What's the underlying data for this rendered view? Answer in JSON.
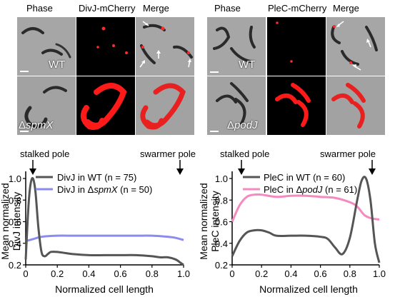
{
  "left_panel": {
    "headers": [
      "Phase",
      "DivJ-mCherry",
      "Merge"
    ],
    "row_labels": [
      "WT",
      "ΔspmX"
    ],
    "row_label_parts": [
      {
        "prefix": "",
        "italic": "WT"
      },
      {
        "prefix": "Δ",
        "italic": "spmX"
      }
    ]
  },
  "right_panel": {
    "headers": [
      "Phase",
      "PleC-mCherry",
      "Merge"
    ],
    "row_labels": [
      "WT",
      "ΔpodJ"
    ],
    "row_label_parts": [
      {
        "prefix": "",
        "italic": "WT"
      },
      {
        "prefix": "Δ",
        "italic": "podJ"
      }
    ]
  },
  "pole_labels": {
    "left_stalked": "stalked pole",
    "left_swarmer": "swarmer pole",
    "right_stalked": "stalked pole",
    "right_swarmer": "swarmer pole"
  },
  "colors": {
    "wt_line": "#555555",
    "mutant_left": "#8b8bf0",
    "mutant_right": "#f58ac0",
    "mcherry": "#ff1a1a",
    "arrow_white": "#ffffff"
  },
  "chart_data": [
    {
      "type": "line",
      "xlabel": "Normalized cell length",
      "ylabel": "Mean normalized DivJ intensity",
      "ylabel_lines": [
        "Mean normalized",
        "DivJ intensity"
      ],
      "xlim": [
        0,
        1
      ],
      "ylim": [
        0.2,
        1.0
      ],
      "xticks": [
        "0",
        "0.2",
        "0.4",
        "0.6",
        "0.8",
        "1.0"
      ],
      "yticks": [
        "0.2",
        "0.4",
        "0.6",
        "0.8",
        "1.0"
      ],
      "legend_loc": "top",
      "legend_labels": [
        {
          "prefix": "DivJ in WT (n = 75)",
          "italic": "",
          "suffix": ""
        },
        {
          "prefix": "DivJ in Δ",
          "italic": "spmX",
          "suffix": " (n = 50)"
        }
      ],
      "series": [
        {
          "name": "DivJ in WT (n = 75)",
          "x": [
            0.0,
            0.02,
            0.04,
            0.06,
            0.08,
            0.1,
            0.12,
            0.14,
            0.16,
            0.2,
            0.25,
            0.3,
            0.4,
            0.5,
            0.6,
            0.7,
            0.8,
            0.85,
            0.9,
            0.95,
            0.98,
            1.0
          ],
          "y": [
            0.25,
            0.8,
            1.0,
            0.9,
            0.55,
            0.32,
            0.28,
            0.3,
            0.32,
            0.32,
            0.31,
            0.3,
            0.29,
            0.29,
            0.29,
            0.29,
            0.28,
            0.27,
            0.27,
            0.25,
            0.22,
            0.2
          ]
        },
        {
          "name": "DivJ in ΔspmX (n = 50)",
          "x": [
            0.0,
            0.05,
            0.1,
            0.2,
            0.3,
            0.4,
            0.5,
            0.6,
            0.7,
            0.8,
            0.9,
            0.95,
            1.0
          ],
          "y": [
            0.42,
            0.44,
            0.46,
            0.47,
            0.47,
            0.47,
            0.47,
            0.47,
            0.47,
            0.47,
            0.46,
            0.45,
            0.43
          ]
        }
      ]
    },
    {
      "type": "line",
      "xlabel": "Normalized cell length",
      "ylabel": "Mean normalized PleC intensity",
      "ylabel_lines": [
        "Mean normalized",
        "PleC intensity"
      ],
      "xlim": [
        0,
        1
      ],
      "ylim": [
        0.2,
        1.0
      ],
      "xticks": [
        "0",
        "0.2",
        "0.4",
        "0.6",
        "0.8",
        "1.0"
      ],
      "yticks": [
        "0.2",
        "0.4",
        "0.6",
        "0.8",
        "1.0"
      ],
      "legend_loc": "top",
      "legend_labels": [
        {
          "prefix": "PleC in WT (n = 60)",
          "italic": "",
          "suffix": ""
        },
        {
          "prefix": "PleC in Δ",
          "italic": "podJ",
          "suffix": " (n = 61)"
        }
      ],
      "series": [
        {
          "name": "PleC in WT (n = 60)",
          "x": [
            0.0,
            0.05,
            0.1,
            0.15,
            0.2,
            0.25,
            0.3,
            0.4,
            0.5,
            0.6,
            0.65,
            0.7,
            0.75,
            0.8,
            0.85,
            0.88,
            0.91,
            0.94,
            0.97,
            1.0
          ],
          "y": [
            0.28,
            0.42,
            0.5,
            0.52,
            0.52,
            0.5,
            0.47,
            0.47,
            0.47,
            0.46,
            0.44,
            0.36,
            0.3,
            0.45,
            0.8,
            0.98,
            1.0,
            0.8,
            0.4,
            0.22
          ]
        },
        {
          "name": "PleC in ΔpodJ (n = 61)",
          "x": [
            0.0,
            0.05,
            0.1,
            0.15,
            0.2,
            0.3,
            0.4,
            0.5,
            0.6,
            0.7,
            0.8,
            0.85,
            0.9,
            0.95,
            1.0
          ],
          "y": [
            0.6,
            0.75,
            0.83,
            0.85,
            0.85,
            0.83,
            0.84,
            0.84,
            0.83,
            0.82,
            0.78,
            0.74,
            0.66,
            0.63,
            0.62
          ]
        }
      ]
    }
  ]
}
